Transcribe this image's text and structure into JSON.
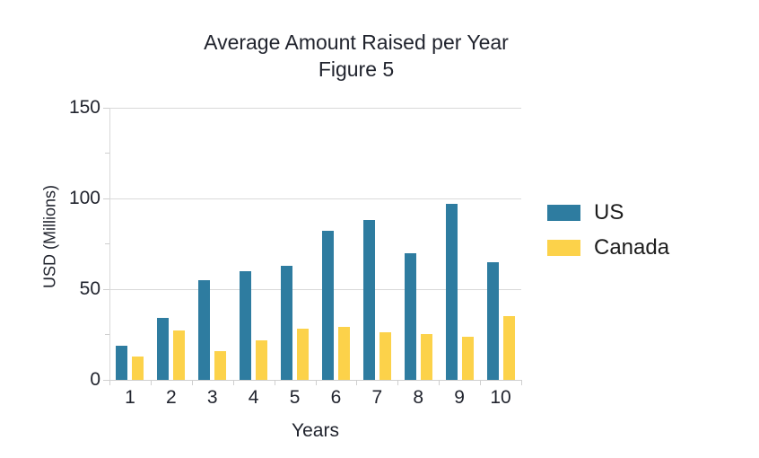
{
  "title": {
    "line1": "Average Amount Raised per Year",
    "line2": "Figure 5"
  },
  "chart_data": {
    "type": "bar",
    "categories": [
      "1",
      "2",
      "3",
      "4",
      "5",
      "6",
      "7",
      "8",
      "9",
      "10"
    ],
    "series": [
      {
        "name": "US",
        "color": "#2e7ca0",
        "values": [
          19,
          34,
          55,
          60,
          63,
          82,
          88,
          70,
          97,
          65
        ]
      },
      {
        "name": "Canada",
        "color": "#fcd24a",
        "values": [
          13,
          27,
          16,
          22,
          28,
          29,
          26,
          25,
          24,
          35
        ]
      }
    ],
    "title": "Average Amount Raised per Year",
    "subtitle": "Figure 5",
    "xlabel": "Years",
    "ylabel": "USD (Millions)",
    "ylim": [
      0,
      150
    ],
    "yticks": [
      0,
      50,
      100,
      150
    ],
    "minor_yticks": [
      25,
      75,
      125
    ],
    "grid": true,
    "legend_position": "right",
    "legend_labels": [
      "US",
      "Canada"
    ]
  },
  "colors": {
    "us_bar": "#2e7ca0",
    "canada_bar": "#fcd24a",
    "gridline": "#d9d9d9",
    "axis": "#cfcfcf",
    "text": "#21242e",
    "background": "#ffffff"
  }
}
